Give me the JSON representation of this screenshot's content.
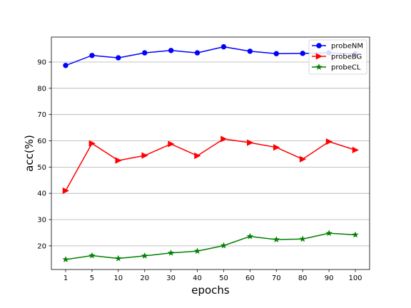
{
  "chart_data": {
    "type": "line",
    "title": "",
    "xlabel": "epochs",
    "ylabel": "acc(%)",
    "categories": [
      "1",
      "5",
      "10",
      "20",
      "30",
      "40",
      "50",
      "60",
      "70",
      "80",
      "90",
      "100"
    ],
    "ylim": [
      11,
      99.5
    ],
    "yticks": [
      20,
      30,
      40,
      50,
      60,
      70,
      80,
      90
    ],
    "grid": "horizontal",
    "legend_position": "top-right",
    "series": [
      {
        "name": "probeNM",
        "color": "#0000ff",
        "marker": "circle",
        "values": [
          88.7,
          92.5,
          91.6,
          93.5,
          94.4,
          93.5,
          95.8,
          94.1,
          93.2,
          93.3,
          93.5,
          93.1
        ]
      },
      {
        "name": "probeBG",
        "color": "#ff0000",
        "marker": "triangle-right",
        "values": [
          41.0,
          59.0,
          52.5,
          54.4,
          58.8,
          54.3,
          60.7,
          59.3,
          57.5,
          53.0,
          59.7,
          56.5
        ]
      },
      {
        "name": "probeCL",
        "color": "#008000",
        "marker": "star",
        "values": [
          14.8,
          16.3,
          15.2,
          16.2,
          17.3,
          18.0,
          20.1,
          23.6,
          22.4,
          22.6,
          24.8,
          24.2
        ]
      }
    ]
  }
}
